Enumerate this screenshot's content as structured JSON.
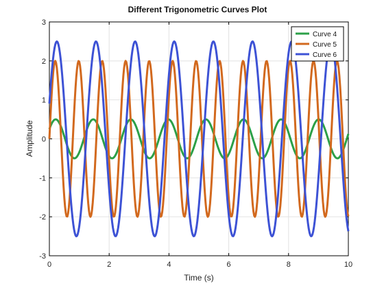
{
  "chart_data": {
    "type": "line",
    "title": "Different Trigonometric Curves Plot",
    "xlabel": "Time (s)",
    "ylabel": "Amplitude",
    "xlim": [
      0,
      10
    ],
    "ylim": [
      -3,
      3
    ],
    "xticks": [
      0,
      2,
      4,
      6,
      8,
      10
    ],
    "yticks": [
      -3,
      -2,
      -1,
      0,
      1,
      2,
      3
    ],
    "grid": true,
    "legend_position": "top-right",
    "x_samples": 401,
    "series": [
      {
        "name": "Curve 4",
        "color": "#2ca048",
        "function": "0.5 * sin(5 * t + 0.52)"
      },
      {
        "name": "Curve 5",
        "color": "#d2691e",
        "function": "2 * sin(8 * t)"
      },
      {
        "name": "Curve 6",
        "color": "#3d52d5",
        "function": "2.5 * cos(4.8 * t - 1.2)"
      }
    ]
  }
}
